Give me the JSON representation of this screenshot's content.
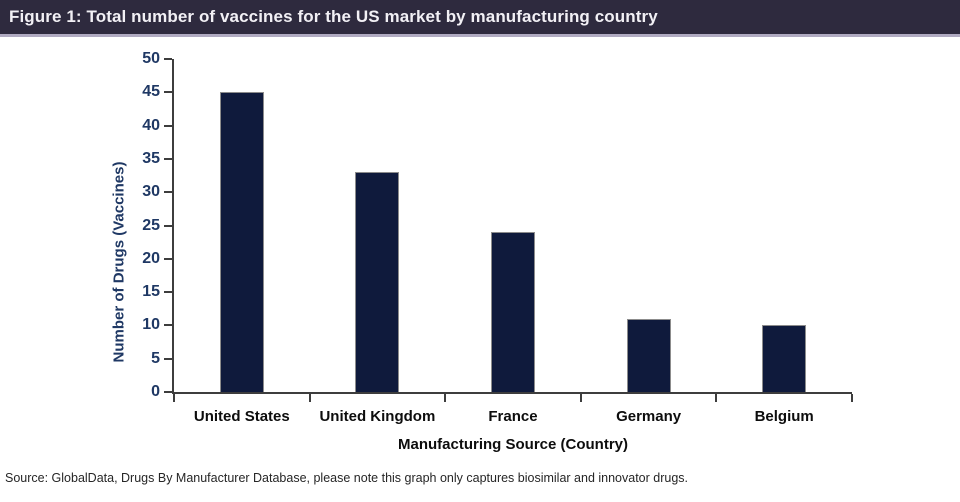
{
  "header": {
    "title": "Figure 1: Total number of vaccines for the US market by manufacturing country",
    "background_color": "#2e2a3e",
    "accent_line_color": "#b0aac1",
    "text_color": "#f2f0f5"
  },
  "chart_data": {
    "type": "bar",
    "categories": [
      "United States",
      "United Kingdom",
      "France",
      "Germany",
      "Belgium"
    ],
    "values": [
      45,
      33,
      24,
      11,
      10
    ],
    "title": "",
    "xlabel": "Manufacturing Source (Country)",
    "ylabel": "Number of Drugs (Vaccines)",
    "ylim": [
      0,
      50
    ],
    "ytick_step": 5,
    "grid": false,
    "legend": "none",
    "bar_color": "#0f1a3c",
    "bar_border_color": "#8c8c8c",
    "axis_color": "#3d3d3d",
    "ytick_label_color": "#1f3864",
    "xtick_label_color": "#0d0d0d"
  },
  "footer": {
    "source": "Source: GlobalData, Drugs By Manufacturer Database, please note this graph only captures biosimilar and innovator drugs."
  }
}
